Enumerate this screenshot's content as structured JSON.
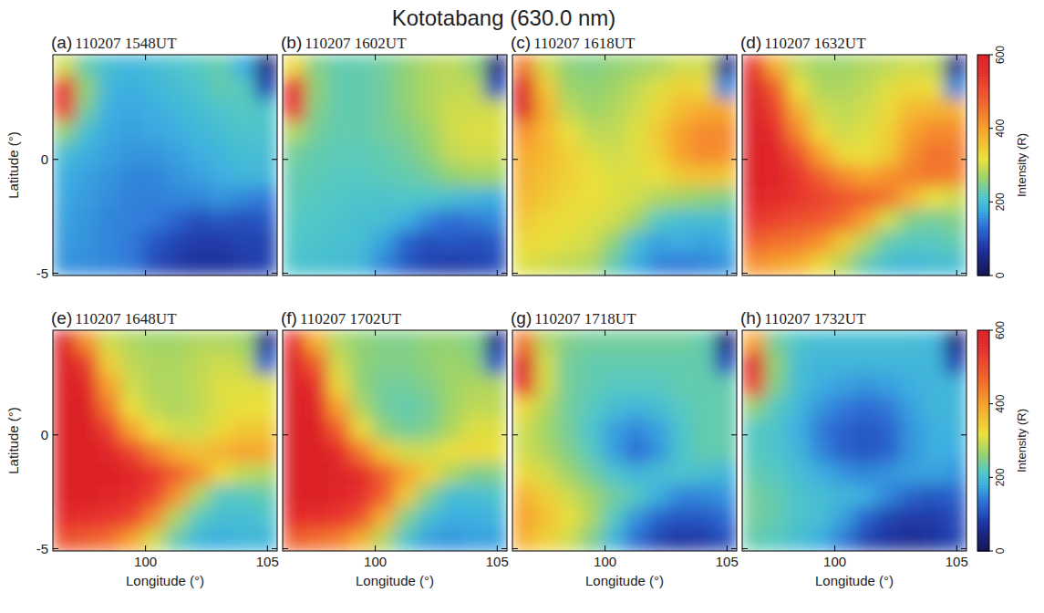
{
  "chart_data": {
    "type": "heatmap",
    "title": "Kototabang (630.0 nm)",
    "xlabel": "Longitude (°)",
    "ylabel": "Latitude (°)",
    "xlim": [
      96.2,
      105.4
    ],
    "ylim": [
      -5.1,
      4.6
    ],
    "xticks": [
      100,
      105
    ],
    "yticks": [
      -5,
      0
    ],
    "colorbar": {
      "label": "Intensity (R)",
      "range": [
        0,
        600
      ],
      "ticks": [
        0,
        200,
        400,
        600
      ]
    },
    "panels": [
      {
        "label": "(a)",
        "time": "110207  1548UT",
        "cells": [
          [
            300,
            230,
            200,
            190,
            200,
            210,
            220,
            230,
            180,
            40
          ],
          [
            550,
            260,
            190,
            180,
            190,
            200,
            210,
            230,
            220,
            90
          ],
          [
            520,
            240,
            180,
            175,
            180,
            190,
            200,
            210,
            220,
            210
          ],
          [
            260,
            200,
            175,
            170,
            175,
            180,
            190,
            200,
            210,
            210
          ],
          [
            200,
            180,
            170,
            160,
            160,
            170,
            180,
            190,
            200,
            200
          ],
          [
            180,
            170,
            160,
            150,
            150,
            160,
            170,
            180,
            190,
            190
          ],
          [
            175,
            165,
            155,
            145,
            145,
            150,
            150,
            160,
            150,
            140
          ],
          [
            170,
            160,
            150,
            145,
            140,
            120,
            100,
            110,
            100,
            110
          ],
          [
            165,
            160,
            150,
            140,
            110,
            90,
            80,
            80,
            90,
            90
          ],
          [
            160,
            155,
            150,
            140,
            100,
            80,
            70,
            70,
            80,
            90
          ]
        ]
      },
      {
        "label": "(b)",
        "time": "110207  1602UT",
        "cells": [
          [
            330,
            250,
            230,
            230,
            240,
            260,
            280,
            290,
            260,
            40
          ],
          [
            560,
            260,
            230,
            230,
            240,
            260,
            280,
            290,
            290,
            100
          ],
          [
            540,
            250,
            230,
            230,
            240,
            260,
            280,
            300,
            300,
            300
          ],
          [
            280,
            240,
            230,
            230,
            240,
            250,
            270,
            300,
            310,
            310
          ],
          [
            240,
            230,
            225,
            225,
            230,
            240,
            260,
            290,
            300,
            300
          ],
          [
            230,
            225,
            220,
            220,
            225,
            230,
            240,
            260,
            270,
            270
          ],
          [
            225,
            220,
            215,
            210,
            210,
            215,
            210,
            200,
            190,
            180
          ],
          [
            220,
            215,
            210,
            205,
            200,
            180,
            150,
            130,
            140,
            150
          ],
          [
            215,
            210,
            205,
            200,
            170,
            120,
            100,
            110,
            100,
            110
          ],
          [
            210,
            205,
            200,
            190,
            150,
            110,
            90,
            80,
            90,
            100
          ]
        ]
      },
      {
        "label": "(c)",
        "time": "110207  1618UT",
        "cells": [
          [
            450,
            300,
            260,
            250,
            260,
            270,
            280,
            300,
            300,
            50
          ],
          [
            600,
            350,
            270,
            260,
            270,
            290,
            310,
            340,
            330,
            150
          ],
          [
            600,
            380,
            290,
            270,
            280,
            300,
            330,
            370,
            390,
            390
          ],
          [
            420,
            370,
            320,
            290,
            290,
            310,
            350,
            400,
            430,
            430
          ],
          [
            390,
            370,
            340,
            310,
            300,
            310,
            340,
            400,
            430,
            420
          ],
          [
            380,
            360,
            340,
            320,
            310,
            310,
            320,
            350,
            360,
            350
          ],
          [
            370,
            350,
            330,
            320,
            310,
            300,
            280,
            270,
            260,
            250
          ],
          [
            350,
            330,
            320,
            310,
            300,
            270,
            220,
            200,
            200,
            200
          ],
          [
            330,
            320,
            310,
            300,
            260,
            200,
            170,
            180,
            170,
            180
          ],
          [
            310,
            300,
            290,
            280,
            230,
            180,
            150,
            140,
            150,
            160
          ]
        ]
      },
      {
        "label": "(d)",
        "time": "110207  1632UT",
        "cells": [
          [
            550,
            380,
            290,
            270,
            270,
            280,
            290,
            300,
            290,
            50
          ],
          [
            600,
            480,
            320,
            280,
            280,
            290,
            310,
            330,
            320,
            150
          ],
          [
            600,
            520,
            380,
            300,
            290,
            300,
            330,
            370,
            380,
            380
          ],
          [
            600,
            550,
            430,
            330,
            300,
            310,
            340,
            400,
            430,
            430
          ],
          [
            600,
            580,
            500,
            400,
            330,
            320,
            350,
            420,
            460,
            450
          ],
          [
            600,
            580,
            540,
            480,
            430,
            400,
            420,
            440,
            450,
            440
          ],
          [
            580,
            560,
            540,
            520,
            500,
            480,
            450,
            380,
            320,
            300
          ],
          [
            540,
            520,
            500,
            490,
            460,
            400,
            300,
            250,
            240,
            250
          ],
          [
            480,
            460,
            450,
            420,
            350,
            280,
            230,
            220,
            220,
            230
          ],
          [
            420,
            400,
            380,
            330,
            280,
            230,
            200,
            190,
            200,
            200
          ]
        ]
      },
      {
        "label": "(e)",
        "time": "110207  1648UT",
        "cells": [
          [
            600,
            420,
            300,
            280,
            270,
            270,
            280,
            280,
            270,
            50
          ],
          [
            600,
            530,
            340,
            290,
            280,
            280,
            290,
            300,
            290,
            120
          ],
          [
            600,
            580,
            400,
            300,
            280,
            280,
            290,
            310,
            310,
            310
          ],
          [
            600,
            600,
            450,
            320,
            290,
            280,
            290,
            310,
            320,
            320
          ],
          [
            600,
            600,
            530,
            400,
            320,
            300,
            300,
            330,
            350,
            350
          ],
          [
            600,
            600,
            580,
            520,
            440,
            380,
            360,
            380,
            400,
            390
          ],
          [
            600,
            600,
            600,
            580,
            540,
            480,
            420,
            330,
            290,
            280
          ],
          [
            600,
            600,
            580,
            560,
            520,
            420,
            280,
            220,
            220,
            230
          ],
          [
            560,
            550,
            540,
            520,
            430,
            280,
            220,
            200,
            200,
            210
          ],
          [
            500,
            480,
            460,
            400,
            300,
            230,
            190,
            180,
            190,
            190
          ]
        ]
      },
      {
        "label": "(f)",
        "time": "110207  1702UT",
        "cells": [
          [
            550,
            380,
            280,
            260,
            250,
            250,
            260,
            260,
            250,
            50
          ],
          [
            600,
            480,
            300,
            260,
            250,
            250,
            260,
            270,
            260,
            110
          ],
          [
            600,
            550,
            330,
            260,
            240,
            240,
            250,
            270,
            280,
            280
          ],
          [
            600,
            580,
            400,
            280,
            240,
            230,
            240,
            270,
            290,
            290
          ],
          [
            600,
            600,
            480,
            330,
            260,
            240,
            250,
            280,
            310,
            310
          ],
          [
            600,
            600,
            560,
            450,
            350,
            300,
            300,
            320,
            330,
            320
          ],
          [
            600,
            600,
            590,
            560,
            480,
            400,
            340,
            280,
            250,
            250
          ],
          [
            600,
            600,
            580,
            550,
            480,
            350,
            250,
            200,
            200,
            210
          ],
          [
            560,
            550,
            540,
            500,
            380,
            250,
            200,
            180,
            180,
            190
          ],
          [
            480,
            460,
            440,
            380,
            280,
            210,
            170,
            160,
            170,
            170
          ]
        ]
      },
      {
        "label": "(g)",
        "time": "110207  1718UT",
        "cells": [
          [
            450,
            280,
            250,
            240,
            240,
            240,
            240,
            240,
            230,
            40
          ],
          [
            600,
            300,
            240,
            230,
            230,
            230,
            230,
            230,
            230,
            100
          ],
          [
            550,
            300,
            240,
            230,
            220,
            220,
            220,
            230,
            230,
            230
          ],
          [
            330,
            280,
            240,
            220,
            200,
            190,
            200,
            220,
            230,
            230
          ],
          [
            300,
            270,
            240,
            210,
            170,
            150,
            170,
            210,
            230,
            230
          ],
          [
            300,
            280,
            250,
            220,
            170,
            130,
            160,
            210,
            230,
            230
          ],
          [
            330,
            300,
            270,
            240,
            210,
            190,
            200,
            210,
            200,
            190
          ],
          [
            380,
            340,
            300,
            270,
            240,
            220,
            180,
            150,
            150,
            160
          ],
          [
            400,
            360,
            320,
            280,
            220,
            160,
            120,
            110,
            110,
            130
          ],
          [
            380,
            340,
            300,
            250,
            190,
            130,
            90,
            70,
            80,
            100
          ]
        ]
      },
      {
        "label": "(h)",
        "time": "110207  1732UT",
        "cells": [
          [
            400,
            240,
            210,
            200,
            200,
            200,
            200,
            200,
            190,
            40
          ],
          [
            600,
            260,
            200,
            190,
            190,
            190,
            190,
            190,
            190,
            90
          ],
          [
            520,
            250,
            200,
            180,
            170,
            160,
            170,
            180,
            190,
            190
          ],
          [
            260,
            220,
            190,
            160,
            140,
            130,
            140,
            170,
            190,
            190
          ],
          [
            220,
            210,
            180,
            140,
            120,
            110,
            120,
            160,
            180,
            190
          ],
          [
            220,
            210,
            190,
            150,
            120,
            110,
            120,
            160,
            180,
            180
          ],
          [
            230,
            220,
            200,
            180,
            160,
            150,
            160,
            170,
            170,
            160
          ],
          [
            240,
            230,
            210,
            200,
            190,
            180,
            150,
            120,
            110,
            120
          ],
          [
            240,
            230,
            210,
            200,
            170,
            120,
            90,
            80,
            80,
            100
          ],
          [
            230,
            220,
            200,
            180,
            140,
            90,
            70,
            60,
            70,
            90
          ]
        ]
      }
    ]
  }
}
